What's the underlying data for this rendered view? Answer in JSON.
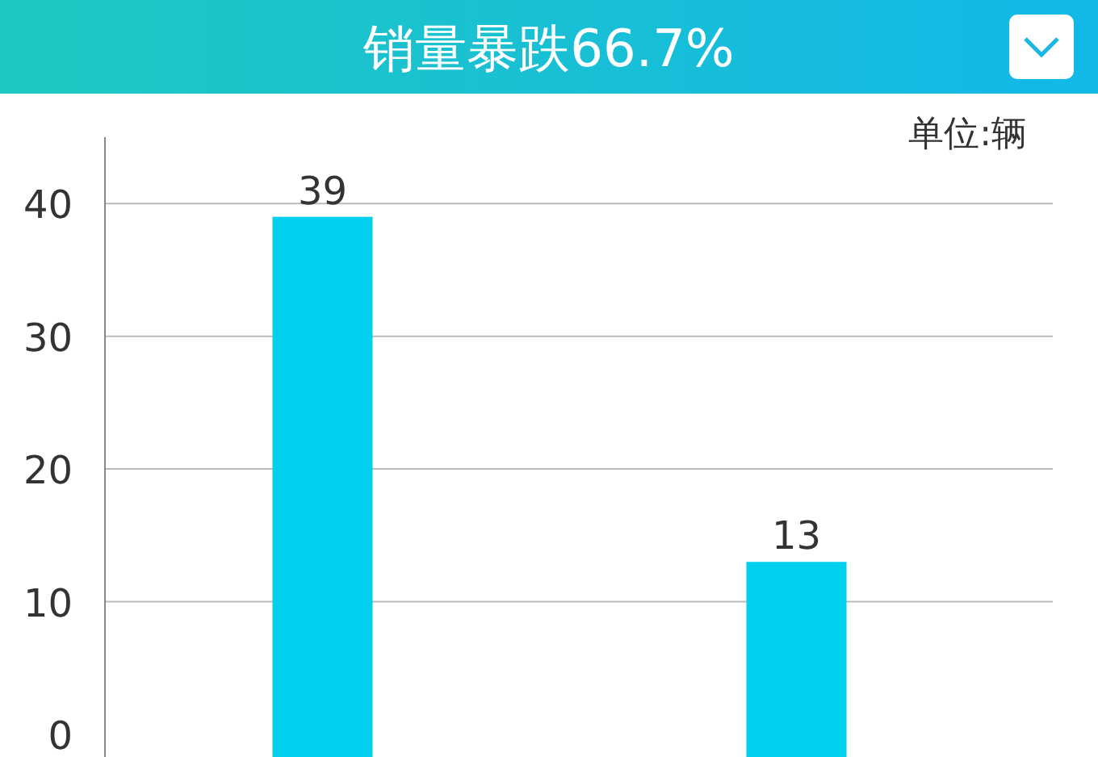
{
  "chart_data": {
    "type": "bar",
    "title": "销量暴跌66.7%",
    "annotations": [
      "单位:辆"
    ],
    "categories": [
      null,
      null
    ],
    "values": [
      39,
      13
    ],
    "color": "#00d0ee",
    "ylim": [
      0,
      45
    ],
    "yticks": [
      0,
      10,
      20,
      30,
      40
    ],
    "grid": "y",
    "data_labels": true
  }
}
